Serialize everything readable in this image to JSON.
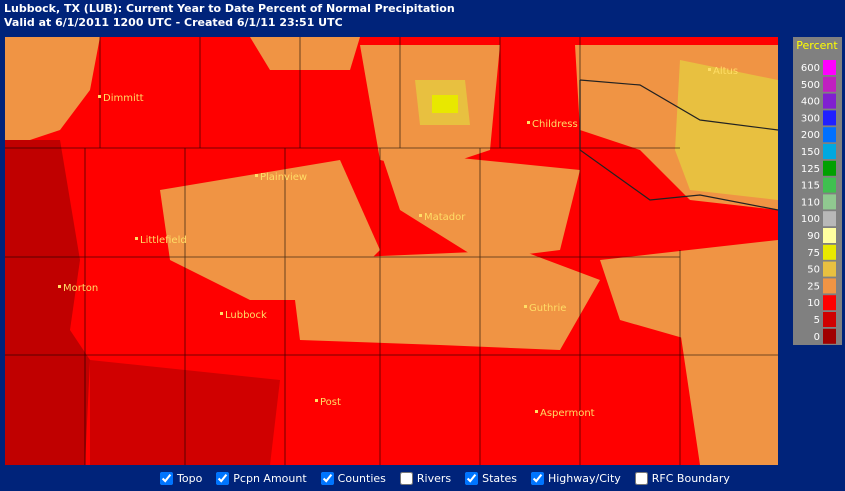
{
  "header": {
    "title": "Lubbock, TX (LUB): Current Year to Date Percent of Normal Precipitation",
    "subtitle": "Valid at 6/1/2011 1200 UTC - Created 6/1/11 23:51 UTC"
  },
  "cities": [
    "Dimmitt",
    "Childress",
    "Altus",
    "Plainview",
    "Matador",
    "Littlefield",
    "Morton",
    "Guthrie",
    "Lubbock",
    "Post",
    "Aspermont"
  ],
  "legend": {
    "title": "Percent",
    "items": [
      {
        "label": "600",
        "color": "#ff00ff"
      },
      {
        "label": "500",
        "color": "#c020c0"
      },
      {
        "label": "400",
        "color": "#8020d0"
      },
      {
        "label": "300",
        "color": "#2020ff"
      },
      {
        "label": "200",
        "color": "#0070ff"
      },
      {
        "label": "150",
        "color": "#00a8e0"
      },
      {
        "label": "125",
        "color": "#00a000"
      },
      {
        "label": "115",
        "color": "#40c050"
      },
      {
        "label": "110",
        "color": "#90c890"
      },
      {
        "label": "100",
        "color": "#b8b8b8"
      },
      {
        "label": "90",
        "color": "#ffffa0"
      },
      {
        "label": "75",
        "color": "#e8e800"
      },
      {
        "label": "50",
        "color": "#e8c040"
      },
      {
        "label": "25",
        "color": "#f09444"
      },
      {
        "label": "10",
        "color": "#ff0000"
      },
      {
        "label": "5",
        "color": "#d00000"
      },
      {
        "label": "0",
        "color": "#a00000"
      }
    ]
  },
  "controls": [
    {
      "label": "Topo",
      "checked": true
    },
    {
      "label": "Pcpn Amount",
      "checked": true
    },
    {
      "label": "Counties",
      "checked": true
    },
    {
      "label": "Rivers",
      "checked": false
    },
    {
      "label": "States",
      "checked": true
    },
    {
      "label": "Highway/City",
      "checked": true
    },
    {
      "label": "RFC Boundary",
      "checked": false
    }
  ]
}
